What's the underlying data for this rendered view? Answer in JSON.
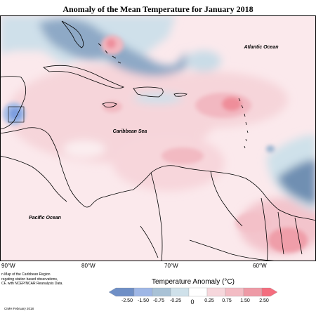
{
  "map": {
    "title": "Anomaly of the Mean Temperature for January 2018",
    "ocean_labels": {
      "atlantic": "Atlantic Ocean",
      "caribbean": "Caribbean Sea",
      "pacific": "Pacific Ocean"
    },
    "longitude_ticks": [
      "90°W",
      "80°W",
      "70°W",
      "60°W"
    ],
    "note_lines": [
      "n Map of the Caribbean Region",
      "regating station based observations,",
      "CF, with NCEP/NCAR Reanalysis Data."
    ],
    "credit": "CIMH February 2018"
  },
  "legend": {
    "title": "Temperature Anomaly (°C)",
    "labels": [
      "-2.50",
      "-1.50",
      "-0.75",
      "-0.25",
      "0",
      "0.25",
      "0.75",
      "1.50",
      "2.50"
    ],
    "colors": {
      "strong_cold": "#6f8fc6",
      "cold": "#9fb7e6",
      "cool": "#a9c2d6",
      "slight_cool": "#cfe1ea",
      "neutral": "#ffffff",
      "slight_warm": "#f6d7dc",
      "warm": "#f3bcc4",
      "hot": "#ee9aa6",
      "strong_hot": "#f46d7e",
      "sea_cold": "#6e8fb0"
    }
  }
}
